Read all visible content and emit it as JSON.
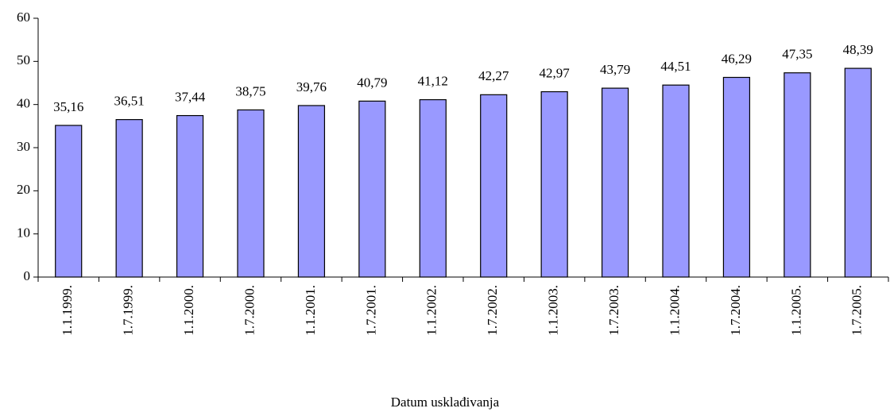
{
  "chart_data": {
    "type": "bar",
    "x_label": "Datum usklađivanja",
    "categories": [
      "1.1.1999.",
      "1.7.1999.",
      "1.1.2000.",
      "1.7.2000.",
      "1.1.2001.",
      "1.7.2001.",
      "1.1.2002.",
      "1.7.2002.",
      "1.1.2003.",
      "1.7.2003.",
      "1.1.2004.",
      "1.7.2004.",
      "1.1.2005.",
      "1.7.2005."
    ],
    "values": [
      35.16,
      36.51,
      37.44,
      38.75,
      39.76,
      40.79,
      41.12,
      42.27,
      42.97,
      43.79,
      44.51,
      46.29,
      47.35,
      48.39
    ],
    "value_labels": [
      "35,16",
      "36,51",
      "37,44",
      "38,75",
      "39,76",
      "40,79",
      "41,12",
      "42,27",
      "42,97",
      "43,79",
      "44,51",
      "46,29",
      "47,35",
      "48,39"
    ],
    "color": "#9999ff",
    "ylim": [
      0,
      60
    ],
    "yticks": [
      0,
      10,
      20,
      30,
      40,
      50,
      60
    ],
    "grid": false
  }
}
